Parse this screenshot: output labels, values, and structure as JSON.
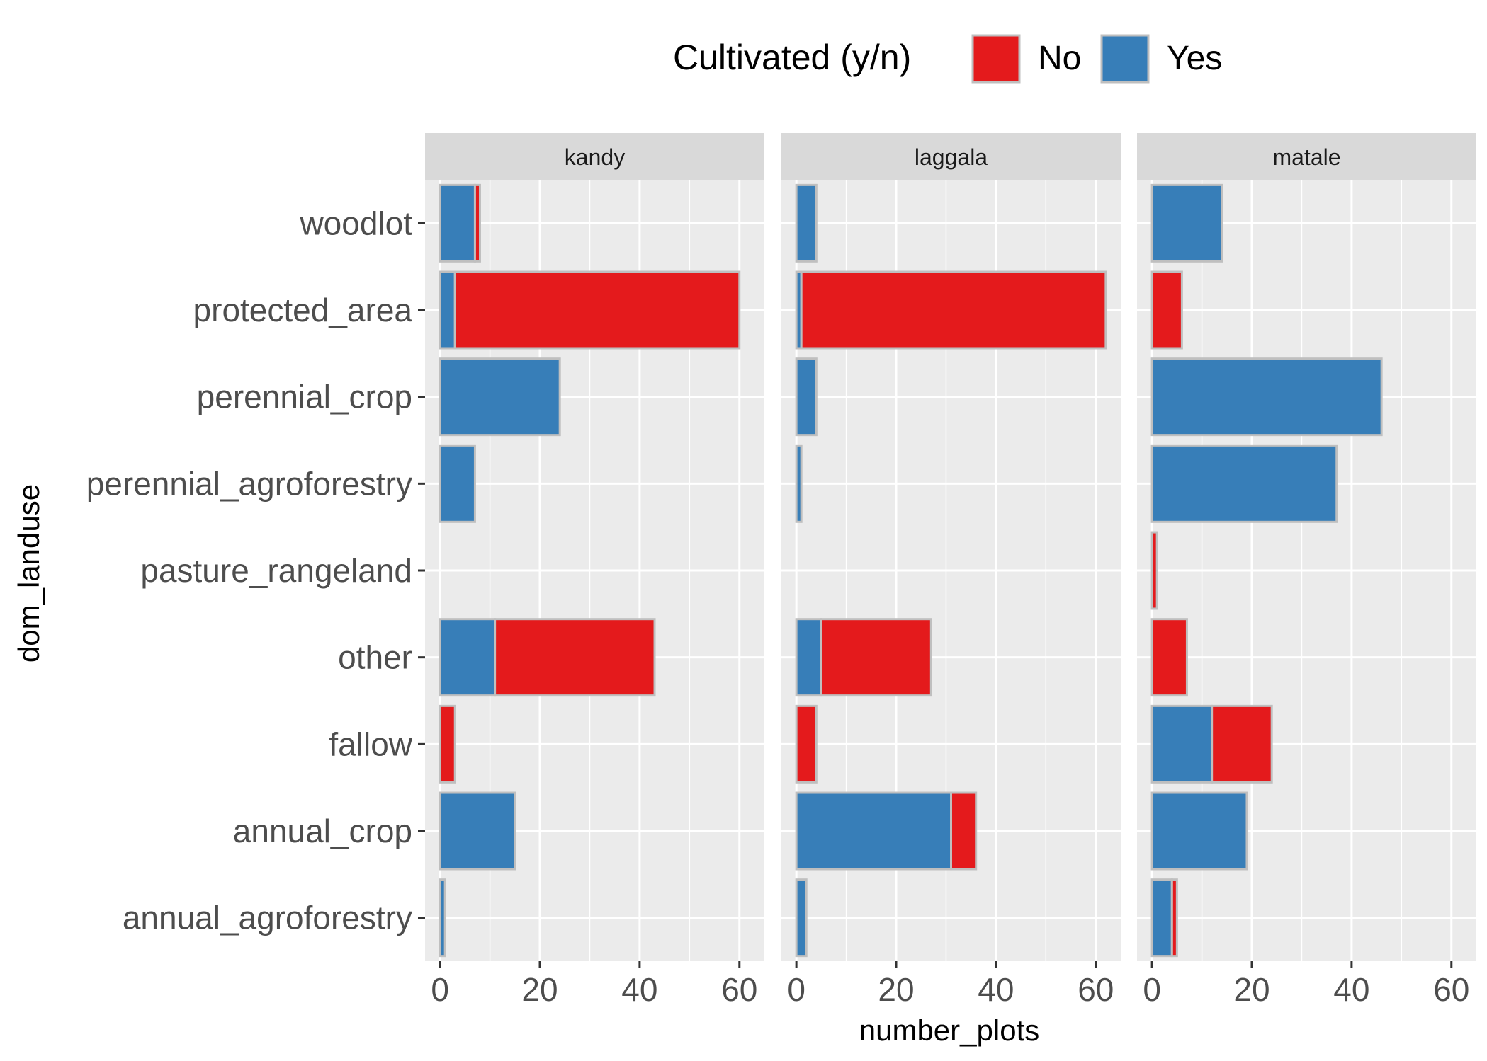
{
  "legend": {
    "title": "Cultivated (y/n)",
    "items": [
      {
        "label": "No",
        "color": "#E41A1C"
      },
      {
        "label": "Yes",
        "color": "#377EB8"
      }
    ]
  },
  "chart_data": {
    "type": "bar",
    "orientation": "horizontal",
    "stacked": true,
    "xlabel": "number_plots",
    "ylabel": "dom_landuse",
    "xlim": [
      -3,
      65
    ],
    "xticks": [
      0,
      20,
      40,
      60
    ],
    "grid": true,
    "legend_position": "top",
    "categories": [
      "woodlot",
      "protected_area",
      "perennial_crop",
      "perennial_agroforestry",
      "pasture_rangeland",
      "other",
      "fallow",
      "annual_crop",
      "annual_agroforestry"
    ],
    "panels": [
      {
        "name": "kandy",
        "series": [
          {
            "name": "Yes",
            "values": [
              7,
              3,
              24,
              7,
              0,
              11,
              0,
              15,
              1
            ]
          },
          {
            "name": "No",
            "values": [
              1,
              57,
              0,
              0,
              0,
              32,
              3,
              0,
              0
            ]
          }
        ]
      },
      {
        "name": "laggala",
        "series": [
          {
            "name": "Yes",
            "values": [
              4,
              1,
              4,
              1,
              0,
              5,
              0,
              31,
              2
            ]
          },
          {
            "name": "No",
            "values": [
              0,
              61,
              0,
              0,
              0,
              22,
              4,
              5,
              0
            ]
          }
        ]
      },
      {
        "name": "matale",
        "series": [
          {
            "name": "Yes",
            "values": [
              14,
              0,
              46,
              37,
              0,
              0,
              12,
              19,
              4
            ]
          },
          {
            "name": "No",
            "values": [
              0,
              6,
              0,
              0,
              1,
              7,
              12,
              0,
              1
            ]
          }
        ]
      }
    ]
  }
}
